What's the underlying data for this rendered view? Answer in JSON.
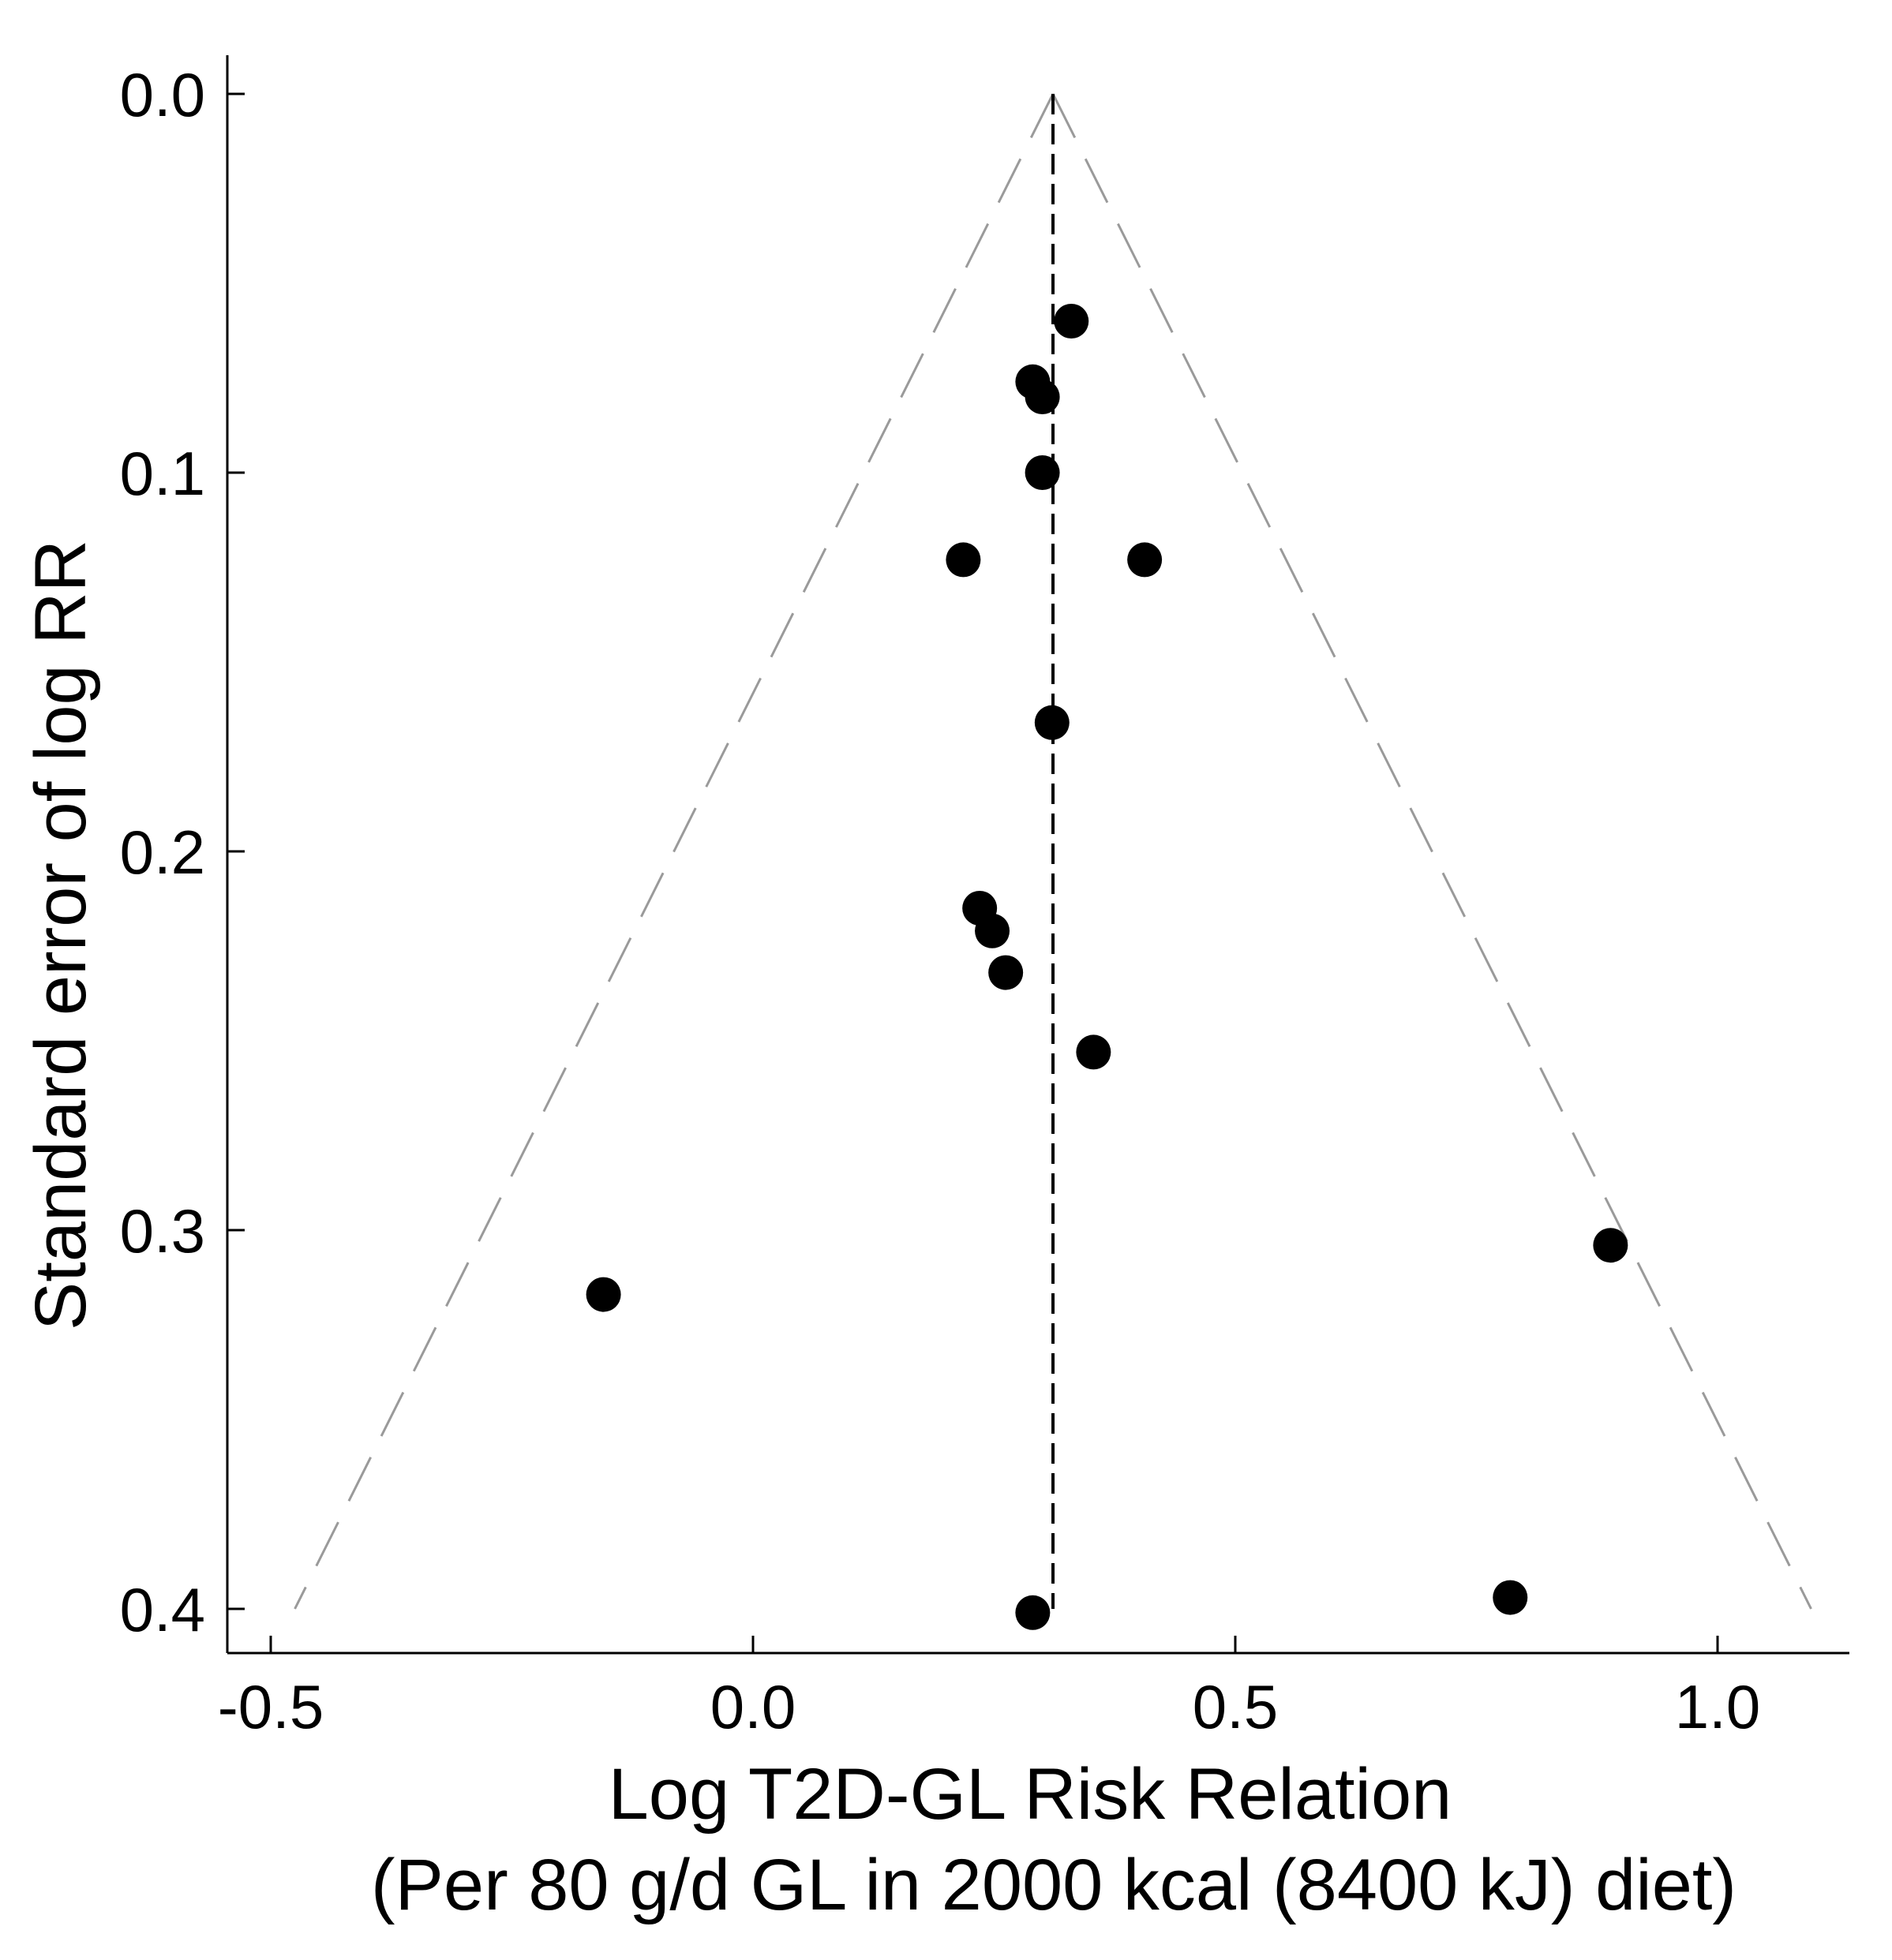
{
  "chart_data": {
    "type": "scatter",
    "subtype": "funnel plot",
    "xlabel": "Log T2D-GL Risk Relation",
    "xlabel_line2": "(Per 80 g/d GL in 2000 kcal (8400 kJ) diet)",
    "ylabel": "Standard error of log RR",
    "xlim": [
      -0.54,
      1.14
    ],
    "ylim": [
      0.0,
      0.411
    ],
    "y_inverted": true,
    "x_ticks": [
      -0.5,
      0.0,
      0.5,
      1.0
    ],
    "x_tick_labels": [
      "-0.5",
      "0.0",
      "0.5",
      "1.0"
    ],
    "y_ticks": [
      0.0,
      0.1,
      0.2,
      0.3,
      0.4
    ],
    "y_tick_labels": [
      "0.0",
      "0.1",
      "0.2",
      "0.3",
      "0.4"
    ],
    "pooled_estimate": 0.311,
    "funnel_limits": {
      "apex": [
        0.311,
        0.0
      ],
      "left_bottom": [
        -0.475,
        0.4
      ],
      "right_bottom": [
        1.097,
        0.4
      ]
    },
    "grid": false,
    "legend": "none",
    "colors": {
      "points": "#000000",
      "axes": "#000000",
      "funnel": "#9a9a9a",
      "pooled_line": "#000000"
    },
    "points": [
      {
        "x": 0.33,
        "y": 0.06
      },
      {
        "x": 0.29,
        "y": 0.076
      },
      {
        "x": 0.3,
        "y": 0.08
      },
      {
        "x": 0.3,
        "y": 0.1
      },
      {
        "x": 0.218,
        "y": 0.123
      },
      {
        "x": 0.406,
        "y": 0.123
      },
      {
        "x": 0.31,
        "y": 0.166
      },
      {
        "x": 0.235,
        "y": 0.215
      },
      {
        "x": 0.248,
        "y": 0.221
      },
      {
        "x": 0.262,
        "y": 0.232
      },
      {
        "x": 0.353,
        "y": 0.253
      },
      {
        "x": -0.155,
        "y": 0.317
      },
      {
        "x": 0.889,
        "y": 0.304
      },
      {
        "x": 0.785,
        "y": 0.397
      },
      {
        "x": 0.29,
        "y": 0.401
      }
    ]
  }
}
